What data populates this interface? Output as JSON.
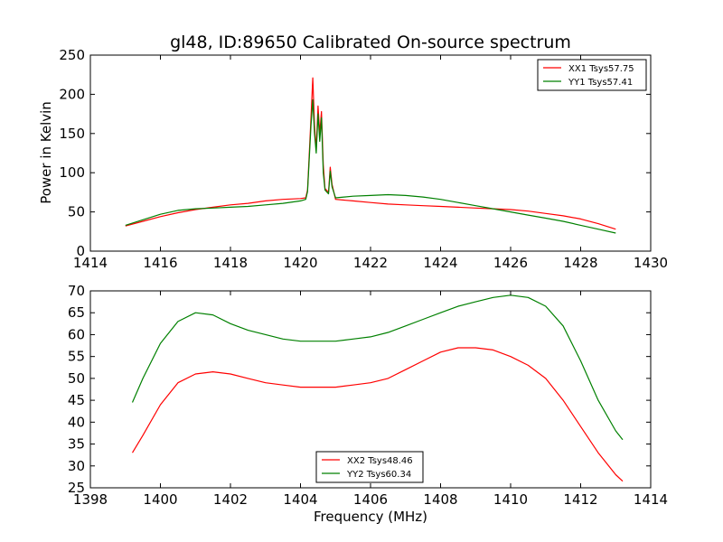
{
  "figure": {
    "title": "gl48, ID:89650 Calibrated On-source spectrum",
    "xlabel": "Frequency (MHz)"
  },
  "chart_data": [
    {
      "type": "line",
      "title": "gl48, ID:89650 Calibrated On-source spectrum",
      "xlabel": "",
      "ylabel": "Power in Kelvin",
      "xlim": [
        1414,
        1430
      ],
      "ylim": [
        0,
        250
      ],
      "xticks": [
        "1414",
        "1416",
        "1418",
        "1420",
        "1422",
        "1424",
        "1426",
        "1428",
        "1430"
      ],
      "yticks": [
        "0",
        "50",
        "100",
        "150",
        "200",
        "250"
      ],
      "legend_position": "top-right",
      "grid": false,
      "series": [
        {
          "name": "XX1 Tsys57.75",
          "color": "#ff0000",
          "x": [
            1415,
            1415.5,
            1416,
            1416.5,
            1417,
            1417.5,
            1418,
            1418.5,
            1419,
            1419.5,
            1420,
            1420.15,
            1420.2,
            1420.3,
            1420.35,
            1420.4,
            1420.45,
            1420.5,
            1420.55,
            1420.6,
            1420.65,
            1420.7,
            1420.8,
            1420.85,
            1420.9,
            1421.0,
            1421.5,
            1422,
            1422.5,
            1423,
            1423.5,
            1424,
            1424.5,
            1425,
            1425.5,
            1426,
            1426.5,
            1427,
            1427.5,
            1428,
            1428.5,
            1429
          ],
          "values": [
            32,
            38,
            44,
            49,
            53,
            56,
            59,
            61,
            64,
            66,
            67,
            68,
            78,
            170,
            221,
            160,
            130,
            185,
            150,
            178,
            110,
            80,
            75,
            107,
            85,
            66,
            64,
            62,
            60,
            59,
            58,
            57,
            56,
            55,
            54,
            53,
            51,
            48,
            45,
            41,
            35,
            28
          ]
        },
        {
          "name": "YY1 Tsys57.41",
          "color": "#008000",
          "x": [
            1415,
            1415.5,
            1416,
            1416.5,
            1417,
            1417.5,
            1418,
            1418.5,
            1419,
            1419.5,
            1420,
            1420.15,
            1420.2,
            1420.3,
            1420.35,
            1420.4,
            1420.45,
            1420.5,
            1420.55,
            1420.6,
            1420.65,
            1420.7,
            1420.8,
            1420.85,
            1420.9,
            1421.0,
            1421.5,
            1422,
            1422.5,
            1423,
            1423.5,
            1424,
            1424.5,
            1425,
            1425.5,
            1426,
            1426.5,
            1427,
            1427.5,
            1428,
            1428.5,
            1429
          ],
          "values": [
            33,
            40,
            47,
            52,
            54,
            55,
            56,
            57,
            59,
            61,
            64,
            66,
            76,
            160,
            193,
            150,
            125,
            175,
            140,
            170,
            100,
            78,
            73,
            102,
            82,
            68,
            70,
            71,
            72,
            71,
            69,
            66,
            62,
            58,
            54,
            50,
            46,
            42,
            38,
            33,
            28,
            23
          ]
        }
      ]
    },
    {
      "type": "line",
      "title": "",
      "xlabel": "Frequency (MHz)",
      "ylabel": "",
      "xlim": [
        1398,
        1414
      ],
      "ylim": [
        25,
        70
      ],
      "xticks": [
        "1398",
        "1400",
        "1402",
        "1404",
        "1406",
        "1408",
        "1410",
        "1412",
        "1414"
      ],
      "yticks": [
        "25",
        "30",
        "35",
        "40",
        "45",
        "50",
        "55",
        "60",
        "65",
        "70"
      ],
      "legend_position": "bottom-center",
      "grid": false,
      "series": [
        {
          "name": "XX2 Tsys48.46",
          "color": "#ff0000",
          "x": [
            1399.2,
            1399.5,
            1400,
            1400.5,
            1401,
            1401.5,
            1402,
            1402.5,
            1403,
            1403.5,
            1404,
            1404.5,
            1405,
            1405.5,
            1406,
            1406.5,
            1407,
            1407.5,
            1408,
            1408.5,
            1409,
            1409.5,
            1410,
            1410.5,
            1411,
            1411.5,
            1412,
            1412.5,
            1413,
            1413.2
          ],
          "values": [
            33,
            37,
            44,
            49,
            51,
            51.5,
            51,
            50,
            49,
            48.5,
            48,
            48,
            48,
            48.5,
            49,
            50,
            52,
            54,
            56,
            57,
            57,
            56.5,
            55,
            53,
            50,
            45,
            39,
            33,
            28,
            26.5
          ]
        },
        {
          "name": "YY2 Tsys60.34",
          "color": "#008000",
          "x": [
            1399.2,
            1399.5,
            1400,
            1400.5,
            1401,
            1401.5,
            1402,
            1402.5,
            1403,
            1403.5,
            1404,
            1404.5,
            1405,
            1405.5,
            1406,
            1406.5,
            1407,
            1407.5,
            1408,
            1408.5,
            1409,
            1409.5,
            1410,
            1410.5,
            1411,
            1411.5,
            1412,
            1412.5,
            1413,
            1413.2
          ],
          "values": [
            44.5,
            50,
            58,
            63,
            65,
            64.5,
            62.5,
            61,
            60,
            59,
            58.5,
            58.5,
            58.5,
            59,
            59.5,
            60.5,
            62,
            63.5,
            65,
            66.5,
            67.5,
            68.5,
            69,
            68.5,
            66.5,
            62,
            54,
            45,
            38,
            36
          ]
        }
      ]
    }
  ]
}
